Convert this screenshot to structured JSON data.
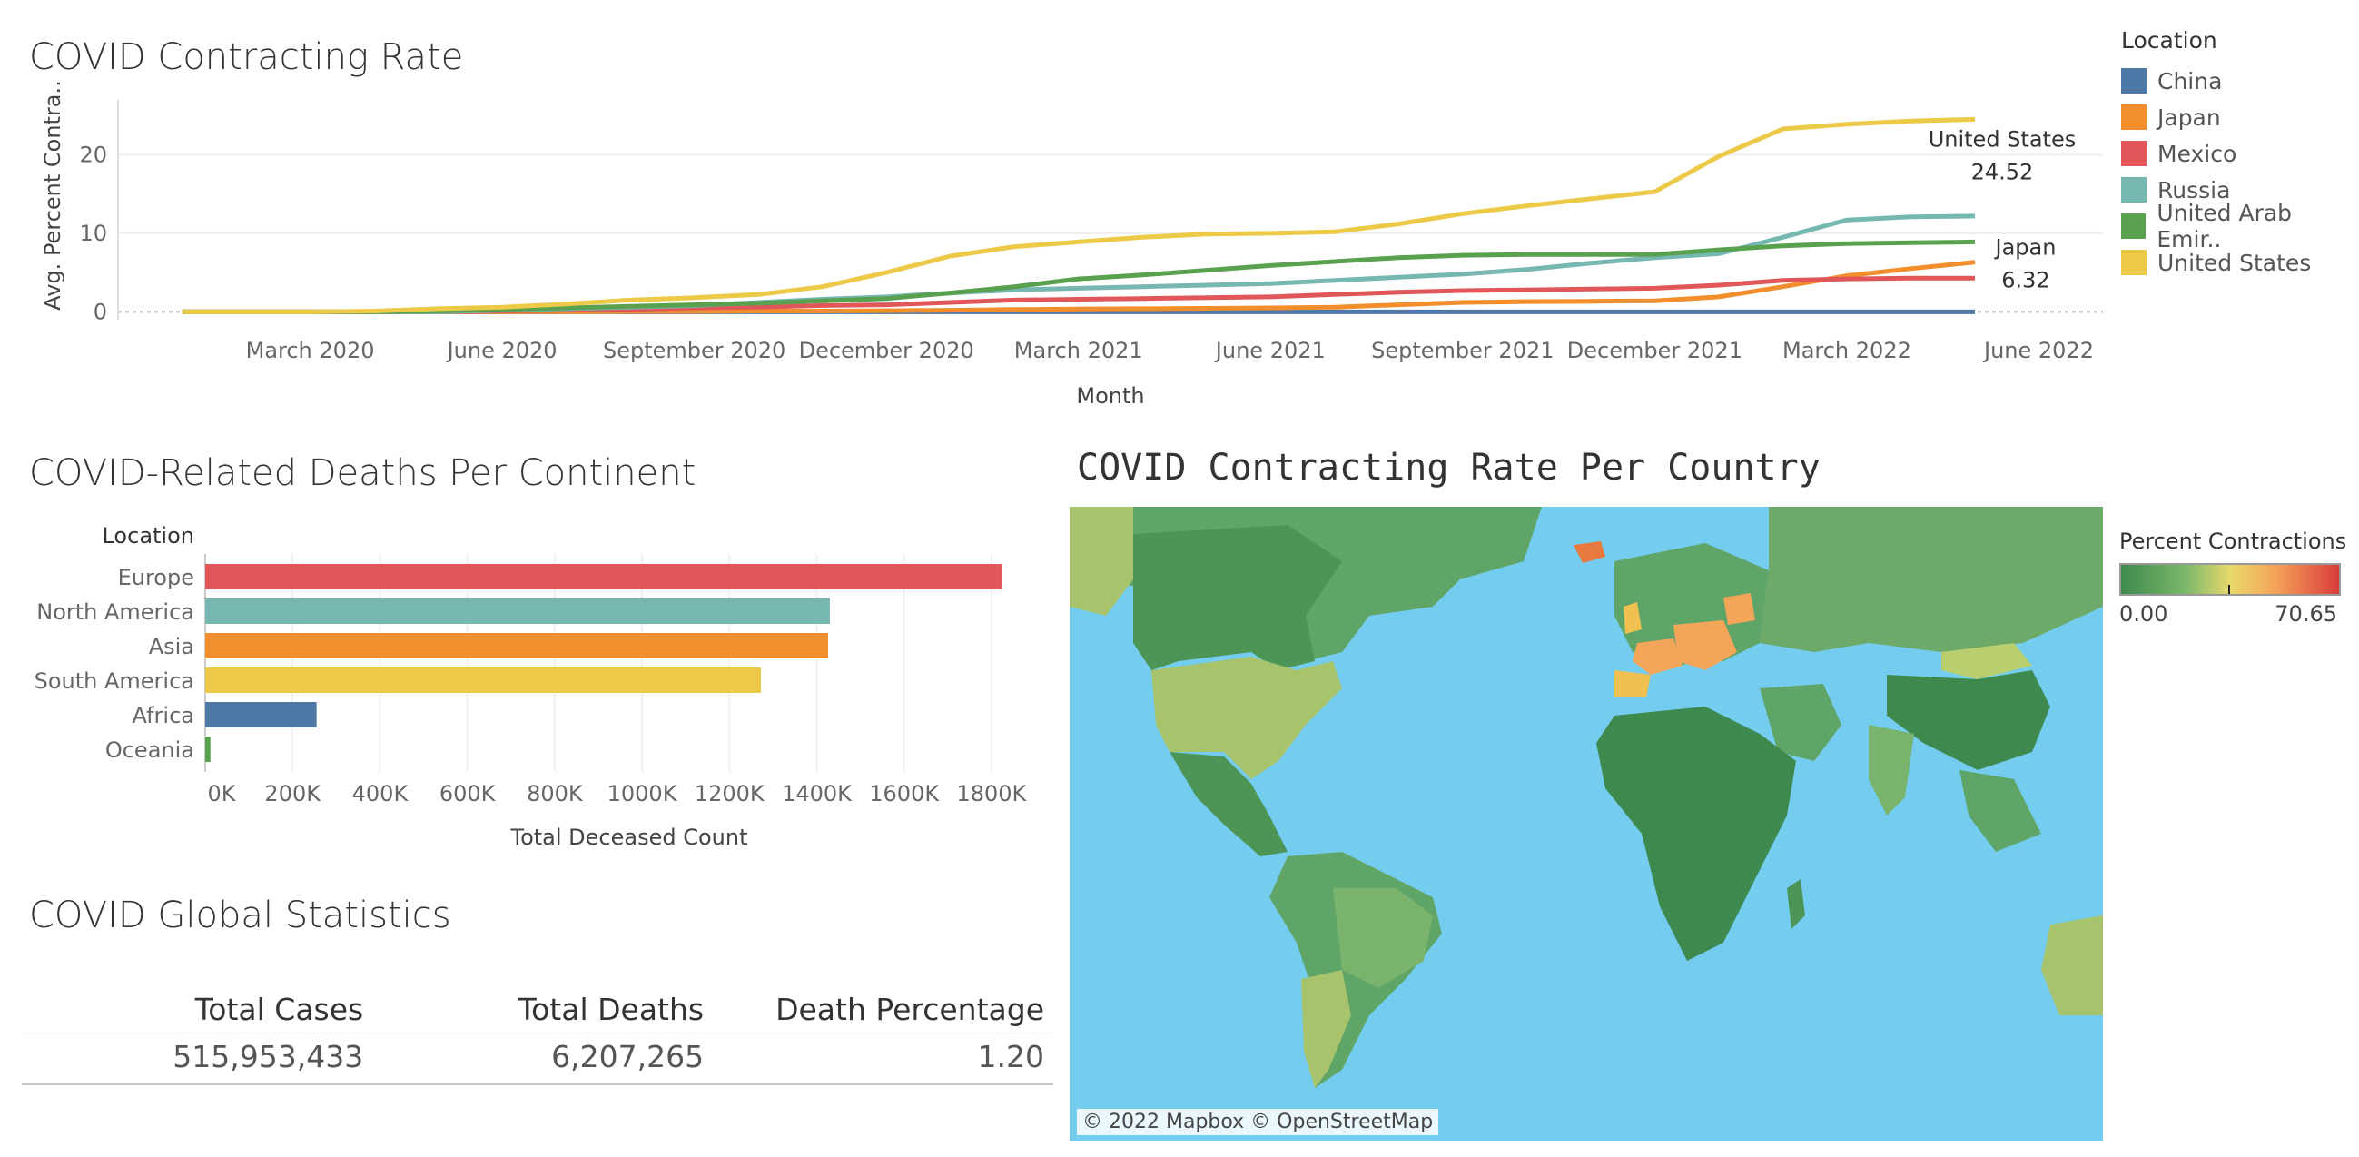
{
  "line_chart": {
    "title": "COVID Contracting Rate",
    "ylabel": "Avg. Percent Contra..",
    "xlabel": "Month",
    "legend_title": "Location",
    "chart_data": {
      "type": "line",
      "x": [
        "2020-01",
        "2020-02",
        "2020-03",
        "2020-04",
        "2020-05",
        "2020-06",
        "2020-07",
        "2020-08",
        "2020-09",
        "2020-10",
        "2020-11",
        "2020-12",
        "2021-01",
        "2021-02",
        "2021-03",
        "2021-04",
        "2021-05",
        "2021-06",
        "2021-07",
        "2021-08",
        "2021-09",
        "2021-10",
        "2021-11",
        "2021-12",
        "2022-01",
        "2022-02",
        "2022-03",
        "2022-04",
        "2022-05"
      ],
      "x_tick_labels": [
        "March 2020",
        "June 2020",
        "September 2020",
        "December 2020",
        "March 2021",
        "June 2021",
        "September 2021",
        "December 2021",
        "March 2022",
        "June 2022"
      ],
      "y_ticks": [
        0,
        10,
        20
      ],
      "ylim": [
        -1,
        27
      ],
      "series": [
        {
          "name": "China",
          "color": "#4e79a7",
          "values": [
            0,
            0,
            0,
            0,
            0,
            0,
            0,
            0,
            0,
            0,
            0,
            0,
            0,
            0,
            0,
            0,
            0,
            0,
            0,
            0,
            0,
            0,
            0,
            0,
            0,
            0,
            0,
            0,
            0
          ]
        },
        {
          "name": "Japan",
          "color": "#f28e2b",
          "values": [
            0,
            0,
            0,
            0,
            0,
            0,
            0,
            0.05,
            0.05,
            0.1,
            0.1,
            0.15,
            0.2,
            0.3,
            0.35,
            0.4,
            0.45,
            0.5,
            0.6,
            0.9,
            1.2,
            1.3,
            1.35,
            1.4,
            1.9,
            3.2,
            4.6,
            5.5,
            6.32
          ]
        },
        {
          "name": "Mexico",
          "color": "#e15759",
          "values": [
            0,
            0,
            0,
            0,
            0,
            0.1,
            0.2,
            0.3,
            0.5,
            0.6,
            0.8,
            0.9,
            1.2,
            1.5,
            1.6,
            1.7,
            1.8,
            1.9,
            2.2,
            2.5,
            2.7,
            2.8,
            2.9,
            3.0,
            3.4,
            4.0,
            4.2,
            4.3,
            4.3
          ]
        },
        {
          "name": "Russia",
          "color": "#76b7b2",
          "values": [
            0,
            0,
            0,
            0,
            0,
            0.2,
            0.4,
            0.6,
            0.8,
            1.2,
            1.6,
            1.9,
            2.4,
            2.8,
            3.0,
            3.2,
            3.4,
            3.6,
            4.0,
            4.4,
            4.8,
            5.4,
            6.2,
            6.9,
            7.4,
            9.5,
            11.7,
            12.1,
            12.2
          ]
        },
        {
          "name": "United Arab Emir..",
          "color": "#59a14f",
          "values": [
            0,
            0,
            0,
            0,
            0.1,
            0.3,
            0.5,
            0.7,
            0.9,
            1.1,
            1.4,
            1.7,
            2.4,
            3.2,
            4.2,
            4.7,
            5.3,
            5.9,
            6.4,
            6.9,
            7.2,
            7.3,
            7.3,
            7.3,
            7.9,
            8.4,
            8.7,
            8.8,
            8.9
          ]
        },
        {
          "name": "United States",
          "color": "#edc948",
          "values": [
            0,
            0,
            0,
            0.1,
            0.4,
            0.6,
            1.0,
            1.5,
            1.8,
            2.2,
            3.2,
            5.0,
            7.1,
            8.3,
            8.9,
            9.5,
            9.9,
            10.0,
            10.2,
            11.2,
            12.5,
            13.5,
            14.4,
            15.3,
            19.8,
            23.3,
            23.9,
            24.3,
            24.52
          ]
        }
      ],
      "annotations": [
        {
          "series": "United States",
          "label": "United States",
          "value": "24.52"
        },
        {
          "series": "Japan",
          "label": "Japan",
          "value": "6.32"
        }
      ]
    }
  },
  "bar_chart": {
    "title": "COVID-Related Deaths Per Continent",
    "category_header": "Location",
    "xlabel": "Total Deceased Count",
    "chart_data": {
      "type": "bar",
      "categories": [
        "Europe",
        "North America",
        "Asia",
        "South America",
        "Africa",
        "Oceania"
      ],
      "values": [
        1825000,
        1430000,
        1426000,
        1272000,
        255000,
        12000
      ],
      "colors": [
        "#e15759",
        "#76b7b2",
        "#f28e2b",
        "#edc948",
        "#4e79a7",
        "#59a14f"
      ],
      "x_tick_labels": [
        "0K",
        "200K",
        "400K",
        "600K",
        "800K",
        "1000K",
        "1200K",
        "1400K",
        "1600K",
        "1800K"
      ],
      "xlim": [
        0,
        1900000
      ]
    }
  },
  "stats": {
    "title": "COVID Global Statistics",
    "headers": {
      "cases": "Total Cases",
      "deaths": "Total Deaths",
      "pct": "Death Percentage"
    },
    "values": {
      "cases": "515,953,433",
      "deaths": "6,207,265",
      "pct": "1.20"
    }
  },
  "map": {
    "title": "COVID Contracting Rate Per Country",
    "credit": "© 2022 Mapbox © OpenStreetMap",
    "legend_title": "Percent Contractions",
    "legend_min": "0.00",
    "legend_max": "70.65",
    "colors": {
      "ocean": "#74cdef",
      "low": "#3e8a4e",
      "mid": "#e8d96b",
      "high": "#d93c3c"
    }
  }
}
